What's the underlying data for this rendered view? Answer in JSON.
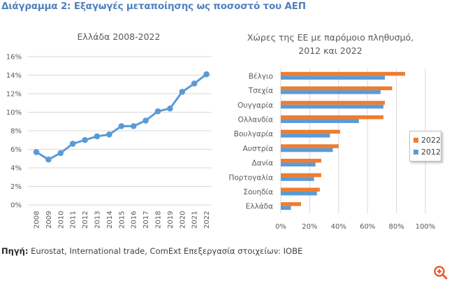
{
  "figure_title": "Διάγραμμα 2: Εξαγωγές μεταποίησης ως ποσοστό του ΑΕΠ",
  "source": {
    "label": "Πηγή:",
    "text": "Eurostat, International trade, ComExt Επεξεργασία στοιχείων: ΙΟΒΕ"
  },
  "zoom_icon": "zoom-in-icon",
  "colors": {
    "title": "#4f81bd",
    "line": "#5b9bd5",
    "series_2022": "#ed7d31",
    "series_2012": "#5b9bd5",
    "zoom_icon": "#f05a28"
  },
  "chart_data": [
    {
      "type": "line",
      "title": "Ελλάδα 2008-2022",
      "xlabel": "",
      "ylabel": "",
      "x": [
        "2008",
        "2009",
        "2010",
        "2011",
        "2012",
        "2013",
        "2014",
        "2015",
        "2016",
        "2017",
        "2018",
        "2019",
        "2020",
        "2021",
        "2022"
      ],
      "values": [
        5.7,
        4.9,
        5.6,
        6.6,
        7.0,
        7.4,
        7.6,
        8.5,
        8.5,
        9.1,
        10.1,
        10.4,
        12.2,
        13.1,
        14.1
      ],
      "ylim": [
        0,
        16
      ],
      "yticks": [
        "0%",
        "2%",
        "4%",
        "6%",
        "8%",
        "10%",
        "12%",
        "14%",
        "16%"
      ],
      "ytick_values": [
        0,
        2,
        4,
        6,
        8,
        10,
        12,
        14,
        16
      ],
      "grid": true,
      "unit": "%"
    },
    {
      "type": "bar",
      "orientation": "horizontal",
      "title_line1": "Χώρες της ΕΕ με παρόμοιο πληθυσμό,",
      "title_line2": "2012 και 2022",
      "categories": [
        "Βέλγιο",
        "Τσεχία",
        "Ουγγαρία",
        "Ολλανδία",
        "Βουλγαρία",
        "Αυστρία",
        "Δανία",
        "Πορτογαλία",
        "Σουηδία",
        "Ελλάδα"
      ],
      "series": [
        {
          "name": "2022",
          "values": [
            86,
            77,
            72,
            71,
            41,
            40,
            28,
            28,
            27,
            14
          ]
        },
        {
          "name": "2012",
          "values": [
            72,
            69,
            71,
            54,
            34,
            36,
            24,
            23,
            25,
            7
          ]
        }
      ],
      "legend": [
        "2022",
        "2012"
      ],
      "legend_position": "right",
      "xlim": [
        0,
        100
      ],
      "xticks": [
        "0%",
        "20%",
        "40%",
        "60%",
        "80%",
        "100%"
      ],
      "xtick_values": [
        0,
        20,
        40,
        60,
        80,
        100
      ],
      "grid": true,
      "unit": "%"
    }
  ]
}
